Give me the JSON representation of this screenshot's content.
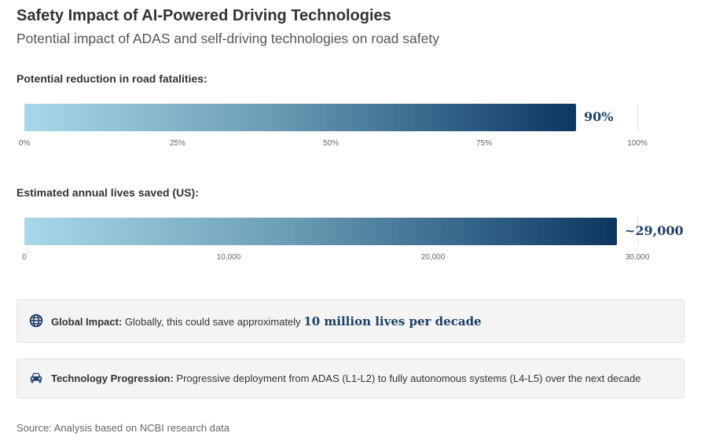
{
  "header": {
    "title": "Safety Impact of AI-Powered Driving Technologies",
    "subtitle": "Potential impact of ADAS and self-driving technologies on road safety"
  },
  "chart_data": [
    {
      "type": "bar",
      "title": "Potential reduction in road fatalities:",
      "value": 90,
      "value_label": "90%",
      "xlim": [
        0,
        100
      ],
      "ticks": [
        "0%",
        "25%",
        "50%",
        "75%",
        "100%"
      ],
      "tick_values": [
        0,
        25,
        50,
        75,
        100
      ],
      "bar_gradient": [
        "#a8d8e8",
        "#0e3660"
      ]
    },
    {
      "type": "bar",
      "title": "Estimated annual lives saved (US):",
      "value": 29000,
      "value_label": "~29,000",
      "xlim": [
        0,
        30000
      ],
      "ticks": [
        "0",
        "10,000",
        "20,000",
        "30,000"
      ],
      "tick_values": [
        0,
        10000,
        20000,
        30000
      ],
      "bar_gradient": [
        "#a8d8e8",
        "#0e3660"
      ]
    }
  ],
  "global_impact": {
    "icon": "globe-icon",
    "label": "Global Impact:",
    "text": "Globally, this could save approximately",
    "highlight": "10 million lives per decade"
  },
  "technology": {
    "icon": "car-icon",
    "label": "Technology Progression:",
    "text": "Progressive deployment from ADAS (L1-L2) to fully autonomous systems (L4-L5) over the next decade"
  },
  "source": "Source: Analysis based on NCBI research data"
}
